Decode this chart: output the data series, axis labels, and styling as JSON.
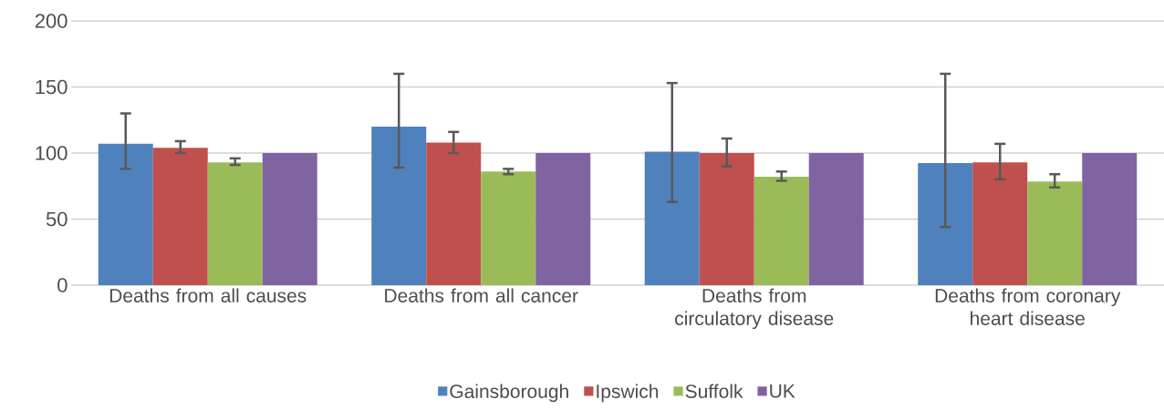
{
  "chart_data": {
    "type": "bar",
    "categories": [
      "Deaths from all causes",
      "Deaths from all cancer",
      "Deaths from circulatory disease",
      "Deaths from coronary heart disease"
    ],
    "series": [
      {
        "name": "Gainsborough",
        "color": "#4f81bd",
        "values": [
          107,
          120,
          101,
          92.5
        ],
        "errors": [
          [
            88,
            130
          ],
          [
            89,
            160
          ],
          [
            63,
            153
          ],
          [
            44,
            160
          ]
        ]
      },
      {
        "name": "Ipswich",
        "color": "#c0504d",
        "values": [
          104,
          108,
          100,
          93
        ],
        "errors": [
          [
            100,
            109
          ],
          [
            100,
            116
          ],
          [
            90,
            111
          ],
          [
            80,
            107
          ]
        ]
      },
      {
        "name": "Suffolk",
        "color": "#9bbb59",
        "values": [
          93,
          86,
          82,
          78.5
        ],
        "errors": [
          [
            91,
            96
          ],
          [
            84,
            88
          ],
          [
            79,
            86
          ],
          [
            74,
            84
          ]
        ]
      },
      {
        "name": "UK",
        "color": "#8064a2",
        "values": [
          100,
          100,
          100,
          100
        ]
      }
    ],
    "ylim": [
      0,
      200
    ],
    "yticks": [
      0,
      50,
      100,
      150,
      200
    ],
    "grid": "y",
    "legend": "bottom"
  }
}
